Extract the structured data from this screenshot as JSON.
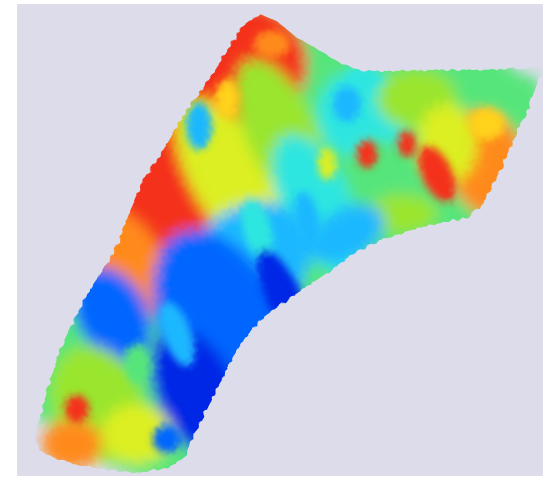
{
  "viewport": {
    "background_color": "#ffffff",
    "canvas_background_color": "#dcdcea"
  },
  "colormap": [
    "#0026e6",
    "#0066ff",
    "#1fb8ff",
    "#2fe6e0",
    "#57e57a",
    "#9ae52e",
    "#dcef22",
    "#ffd21a",
    "#ff8a1a",
    "#f4311b"
  ]
}
